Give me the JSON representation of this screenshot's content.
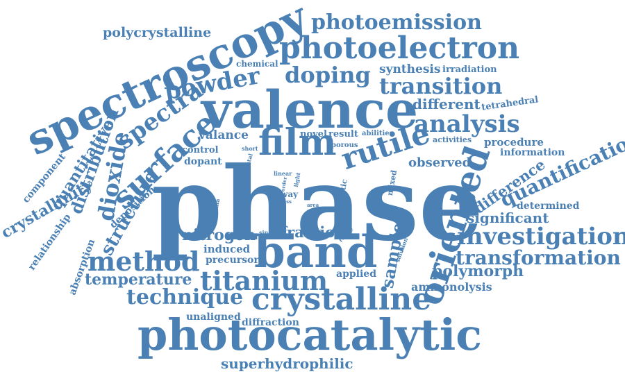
{
  "style": {
    "word_color": "#4a80b4",
    "background": "#ffffff"
  },
  "words": {
    "phase": "phase",
    "valence": "valence",
    "photocatalytic": "photocatalytic",
    "spectroscopy": "spectroscopy",
    "band": "band",
    "crystalline": "crystalline",
    "photoelectron": "photoelectron",
    "film": "film",
    "oriented": "oriented",
    "rutile": "rutile",
    "surface": "surface",
    "titanium": "titanium",
    "method": "method",
    "investigation": "investigation",
    "analysis": "analysis",
    "doping": "doping",
    "powder": "powder",
    "transition": "transition",
    "photoemission": "photoemission",
    "spectra": "spectra",
    "dioxide": "dioxide",
    "technique": "technique",
    "transformation": "transformation",
    "quantification": "quantification",
    "temperature": "temperature",
    "structure": "structure",
    "superhydrophilic": "superhydrophilic",
    "nitrogen": "nitrogen",
    "polycrystalline": "polycrystalline",
    "distribution": "distribution",
    "quantitative": "quantitative",
    "crystallinity": "crystallinity",
    "sample": "sample",
    "polymorph": "polymorph",
    "fraction": "fraction",
    "different": "different",
    "difference": "difference",
    "significant": "significant",
    "observed": "observed",
    "synthesis": "synthesis",
    "irradiation": "irradiation",
    "chemical": "chemical",
    "tetrahedral": "tetrahedral",
    "procedure": "procedure",
    "information": "information",
    "determined": "determined",
    "activities": "activities",
    "valance": "valance",
    "control": "control",
    "dopant": "dopant",
    "novel": "novel",
    "result": "result",
    "abilities": "abilities",
    "porous": "porous",
    "short": "short",
    "crystal": "crystal",
    "linear": "linear",
    "light": "light",
    "order": "order",
    "way": "way",
    "glass": "glass",
    "area": "area",
    "mixed": "mixed",
    "dramatic": "dramatic",
    "range": "range",
    "solution": "solution",
    "single": "single",
    "titania": "titania",
    "induced": "induced",
    "precursor": "precursor",
    "applied": "applied",
    "ammonolysis": "ammonolysis",
    "unaligned": "unaligned",
    "diffraction": "diffraction",
    "deposition": "deposition",
    "component": "component",
    "relationship": "relationship",
    "absorption": "absorption"
  }
}
